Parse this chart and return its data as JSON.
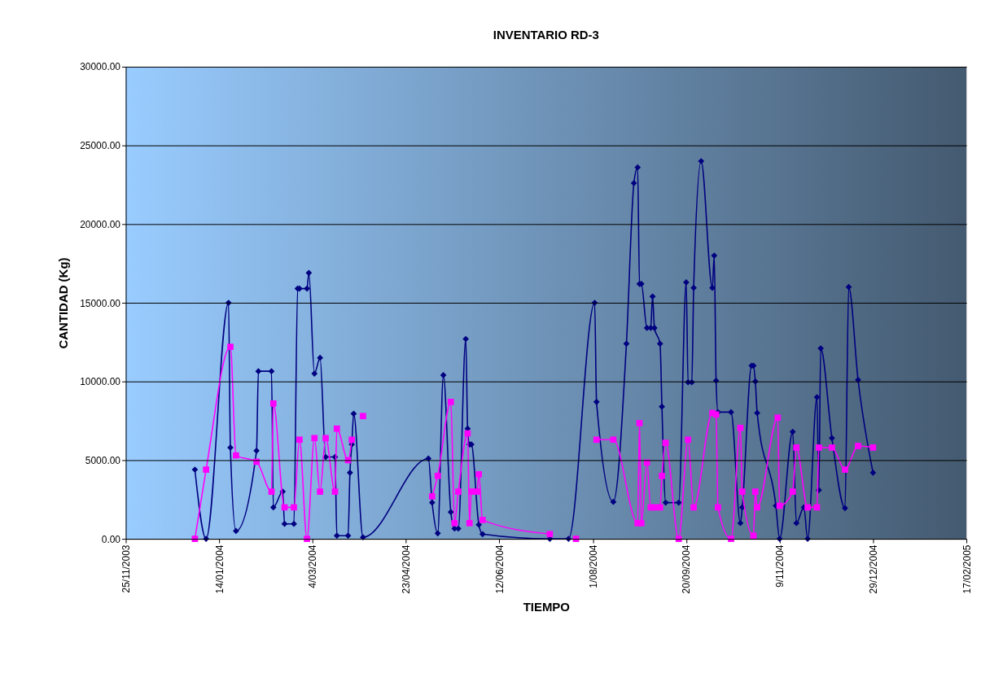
{
  "chart_data": {
    "type": "line",
    "title": "INVENTARIO RD-3",
    "xlabel": "TIEMPO",
    "ylabel": "CANTIDAD (Kg)",
    "xlim": [
      "2003-11-25",
      "2005-02-17"
    ],
    "xticks": [
      {
        "value": "2003-11-25",
        "label": "25/11/2003"
      },
      {
        "value": "2004-01-14",
        "label": "14/01/2004"
      },
      {
        "value": "2004-03-04",
        "label": "4/03/2004"
      },
      {
        "value": "2004-04-23",
        "label": "23/04/2004"
      },
      {
        "value": "2004-06-12",
        "label": "12/06/2004"
      },
      {
        "value": "2004-08-01",
        "label": "1/08/2004"
      },
      {
        "value": "2004-09-20",
        "label": "20/09/2004"
      },
      {
        "value": "2004-11-09",
        "label": "9/11/2004"
      },
      {
        "value": "2004-12-29",
        "label": "29/12/2004"
      },
      {
        "value": "2005-02-17",
        "label": "17/02/2005"
      }
    ],
    "ylim": [
      0,
      30000
    ],
    "yticks": [
      {
        "value": 0,
        "label": "0.00"
      },
      {
        "value": 5000,
        "label": "5000.00"
      },
      {
        "value": 10000,
        "label": "10000.00"
      },
      {
        "value": 15000,
        "label": "15000.00"
      },
      {
        "value": 20000,
        "label": "20000.00"
      },
      {
        "value": 25000,
        "label": "25000.00"
      },
      {
        "value": 30000,
        "label": "30000.00"
      }
    ],
    "grid": "y",
    "series": [
      {
        "color": "#000080",
        "marker": "diamond",
        "x": [
          "2004-01-01",
          "2004-01-07",
          "2004-01-19",
          "2004-01-20",
          "2004-01-23",
          "2004-02-03",
          "2004-02-04",
          "2004-02-11",
          "2004-02-12",
          "2004-02-17",
          "2004-02-18",
          "2004-02-23",
          "2004-02-25",
          "2004-02-26",
          "2004-03-01",
          "2004-03-02",
          "2004-03-05",
          "2004-03-08",
          "2004-03-11",
          "2004-03-16",
          "2004-03-17",
          "2004-03-23",
          "2004-03-24",
          "2004-03-25",
          "2004-03-26",
          "2004-03-31",
          "2004-05-05",
          "2004-05-07",
          "2004-05-10",
          "2004-05-13",
          "2004-05-17",
          "2004-05-19",
          "2004-05-21",
          "2004-05-25",
          "2004-05-26",
          "2004-05-27",
          "2004-05-28",
          "2004-06-01",
          "2004-06-03",
          "2004-07-09",
          "2004-07-19",
          "2004-08-02",
          "2004-08-03",
          "2004-08-12",
          "2004-08-19",
          "2004-08-23",
          "2004-08-25",
          "2004-08-26",
          "2004-08-27",
          "2004-08-30",
          "2004-09-01",
          "2004-09-02",
          "2004-09-03",
          "2004-09-06",
          "2004-09-07",
          "2004-09-09",
          "2004-09-16",
          "2004-09-20",
          "2004-09-21",
          "2004-09-23",
          "2004-09-24",
          "2004-09-28",
          "2004-10-04",
          "2004-10-05",
          "2004-10-06",
          "2004-10-07",
          "2004-10-14",
          "2004-10-19",
          "2004-10-20",
          "2004-10-25",
          "2004-10-26",
          "2004-10-27",
          "2004-10-28",
          "2004-11-07",
          "2004-11-09",
          "2004-11-16",
          "2004-11-18",
          "2004-11-22",
          "2004-11-24",
          "2004-11-29",
          "2004-11-30",
          "2004-12-01",
          "2004-12-07",
          "2004-12-14",
          "2004-12-16",
          "2004-12-21",
          "2004-12-29"
        ],
        "values": [
          4400,
          0,
          15000,
          5800,
          500,
          5600,
          10650,
          10650,
          2000,
          3000,
          950,
          950,
          15900,
          15900,
          15900,
          16900,
          10500,
          11500,
          5200,
          5200,
          200,
          200,
          4200,
          6000,
          7950,
          100,
          5100,
          2300,
          350,
          10400,
          1700,
          650,
          650,
          12700,
          7000,
          6000,
          6000,
          900,
          300,
          0,
          0,
          15000,
          8700,
          2350,
          12400,
          22600,
          23600,
          16200,
          16200,
          13400,
          13400,
          15400,
          13400,
          12400,
          8400,
          2300,
          2300,
          16300,
          9950,
          9950,
          15950,
          24000,
          15950,
          18000,
          10050,
          8050,
          8050,
          1000,
          2000,
          11000,
          11000,
          10000,
          8000,
          2100,
          0,
          6800,
          1000,
          2000,
          0,
          9000,
          3100,
          12100,
          6400,
          1950,
          16000,
          10100,
          4200
        ]
      },
      {
        "color": "#ff00ff",
        "marker": "square",
        "x": [
          "2004-01-01",
          "2004-01-07",
          "2004-01-20",
          "2004-01-23",
          "2004-02-03",
          "2004-02-11",
          "2004-02-12",
          "2004-02-18",
          "2004-02-23",
          "2004-02-26",
          "2004-03-01",
          "2004-03-05",
          "2004-03-08",
          "2004-03-11",
          "2004-03-16",
          "2004-03-17",
          "2004-03-23",
          "2004-03-25"
        ],
        "values": [
          0,
          4400,
          12200,
          5300,
          4900,
          3000,
          8600,
          2000,
          2000,
          6300,
          0,
          6400,
          3000,
          6400,
          3000,
          7000,
          5000,
          6300
        ]
      },
      {
        "color": "#ff00ff",
        "marker": "square",
        "x": [
          "2004-03-31"
        ],
        "values": [
          7800
        ]
      },
      {
        "color": "#ff00ff",
        "marker": "square",
        "x": [
          "2004-05-07",
          "2004-05-10",
          "2004-05-17",
          "2004-05-19",
          "2004-05-21",
          "2004-05-26",
          "2004-05-27",
          "2004-05-28",
          "2004-05-31",
          "2004-06-01",
          "2004-06-03",
          "2004-07-09"
        ],
        "values": [
          2700,
          4000,
          8700,
          1000,
          3000,
          6700,
          1000,
          3000,
          3000,
          4100,
          1200,
          300
        ]
      },
      {
        "color": "#ff00ff",
        "marker": "square",
        "x": [
          "2004-07-23"
        ],
        "values": [
          0
        ]
      },
      {
        "color": "#ff00ff",
        "marker": "square",
        "x": [
          "2004-08-03",
          "2004-08-12",
          "2004-08-25",
          "2004-08-26",
          "2004-08-27",
          "2004-08-30",
          "2004-09-01",
          "2004-09-03",
          "2004-09-06",
          "2004-09-07",
          "2004-09-09",
          "2004-09-16",
          "2004-09-21",
          "2004-09-24",
          "2004-10-04",
          "2004-10-06",
          "2004-10-07",
          "2004-10-14",
          "2004-10-19",
          "2004-10-20",
          "2004-10-26",
          "2004-10-27",
          "2004-10-28",
          "2004-11-08",
          "2004-11-09",
          "2004-11-16",
          "2004-11-18",
          "2004-11-24",
          "2004-11-29",
          "2004-11-30",
          "2004-12-07",
          "2004-12-14",
          "2004-12-21",
          "2004-12-29"
        ],
        "values": [
          6300,
          6300,
          1000,
          7350,
          1000,
          4850,
          2000,
          2000,
          2000,
          4000,
          6100,
          0,
          6300,
          2000,
          8000,
          7900,
          2000,
          0,
          7050,
          3000,
          200,
          3000,
          2000,
          7700,
          2100,
          3000,
          5800,
          2000,
          2000,
          5800,
          5800,
          4400,
          5900,
          5800
        ]
      }
    ]
  }
}
